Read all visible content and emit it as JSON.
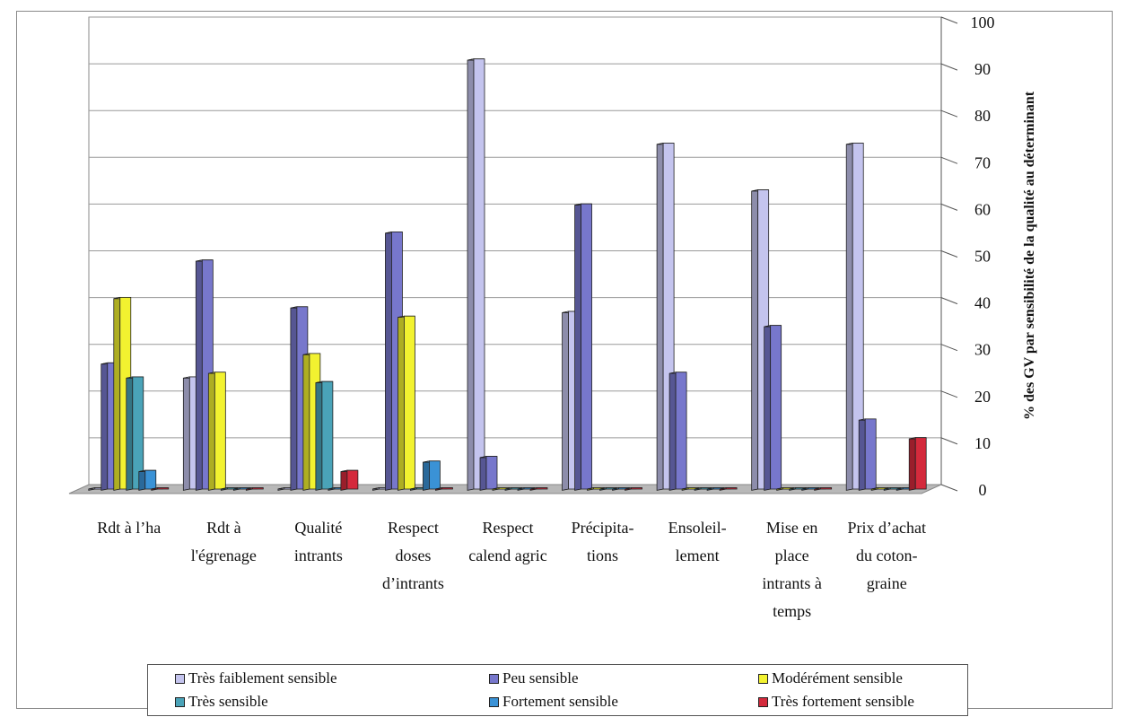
{
  "chart_data": {
    "type": "bar",
    "ylabel": "% des GV par sensibilité de la qualité au déterminant",
    "ylim": [
      0,
      100
    ],
    "yticks": [
      "0",
      "10",
      "20",
      "30",
      "40",
      "50",
      "60",
      "70",
      "80",
      "90",
      "100"
    ],
    "categories": [
      [
        "Rdt à l’ha"
      ],
      [
        "Rdt à",
        "l'égrenage"
      ],
      [
        "Qualité",
        "intrants"
      ],
      [
        "Respect",
        "doses",
        "d’intrants"
      ],
      [
        "Respect",
        "calend agric"
      ],
      [
        "Précipita-",
        "tions"
      ],
      [
        "Ensoleil-",
        "lement"
      ],
      [
        "Mise en",
        "place",
        "intrants à",
        "temps"
      ],
      [
        "Prix d’achat",
        "du coton-",
        "graine"
      ]
    ],
    "series": [
      {
        "name": "Très faiblement sensible",
        "color": "#c4c4ee",
        "values": [
          0,
          24,
          0,
          0,
          92,
          38,
          74,
          64,
          74
        ]
      },
      {
        "name": "Peu sensible",
        "color": "#7777cc",
        "values": [
          27,
          49,
          39,
          55,
          7,
          61,
          25,
          35,
          15
        ]
      },
      {
        "name": "Modérément sensible",
        "color": "#f2f230",
        "values": [
          41,
          25,
          29,
          37,
          0,
          0,
          0,
          0,
          0
        ]
      },
      {
        "name": "Très sensible",
        "color": "#4aa3b8",
        "values": [
          24,
          0,
          23,
          0,
          0,
          0,
          0,
          0,
          0
        ]
      },
      {
        "name": "Fortement sensible",
        "color": "#3a92d6",
        "values": [
          4,
          0,
          0,
          6,
          0,
          0,
          0,
          0,
          0
        ]
      },
      {
        "name": "Très fortement sensible",
        "color": "#d42a3c",
        "values": [
          0,
          0,
          4,
          0,
          0,
          0,
          0,
          0,
          11
        ]
      }
    ],
    "grid": true,
    "legend_position": "bottom"
  }
}
